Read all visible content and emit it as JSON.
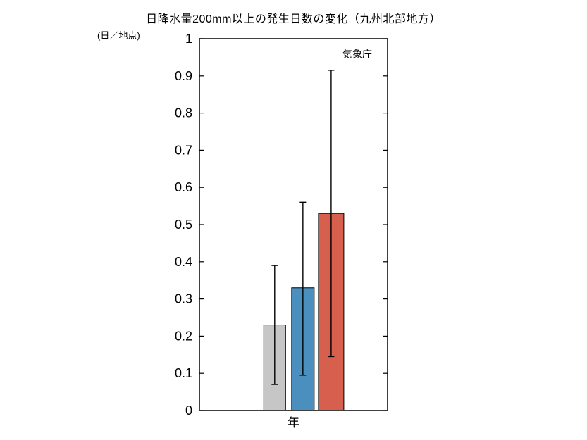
{
  "page": {
    "background_color": "#ffffff"
  },
  "chart_data": {
    "type": "bar",
    "title": "日降水量200mm以上の発生日数の変化（九州北部地方）",
    "unit_label": "(日／地点)",
    "xlabel": "年",
    "source_annotation": "気象庁",
    "ylim": [
      0,
      1
    ],
    "yticks": [
      0,
      0.1,
      0.2,
      0.3,
      0.4,
      0.5,
      0.6,
      0.7,
      0.8,
      0.9,
      1
    ],
    "grid": false,
    "legend": "none",
    "bars": [
      {
        "name": "bar-1",
        "value": 0.23,
        "err_low": 0.07,
        "err_high": 0.39,
        "color": "#c6c6c6"
      },
      {
        "name": "bar-2",
        "value": 0.33,
        "err_low": 0.095,
        "err_high": 0.56,
        "color": "#4b8fbf"
      },
      {
        "name": "bar-3",
        "value": 0.53,
        "err_low": 0.145,
        "err_high": 0.915,
        "color": "#d6604d"
      }
    ]
  }
}
